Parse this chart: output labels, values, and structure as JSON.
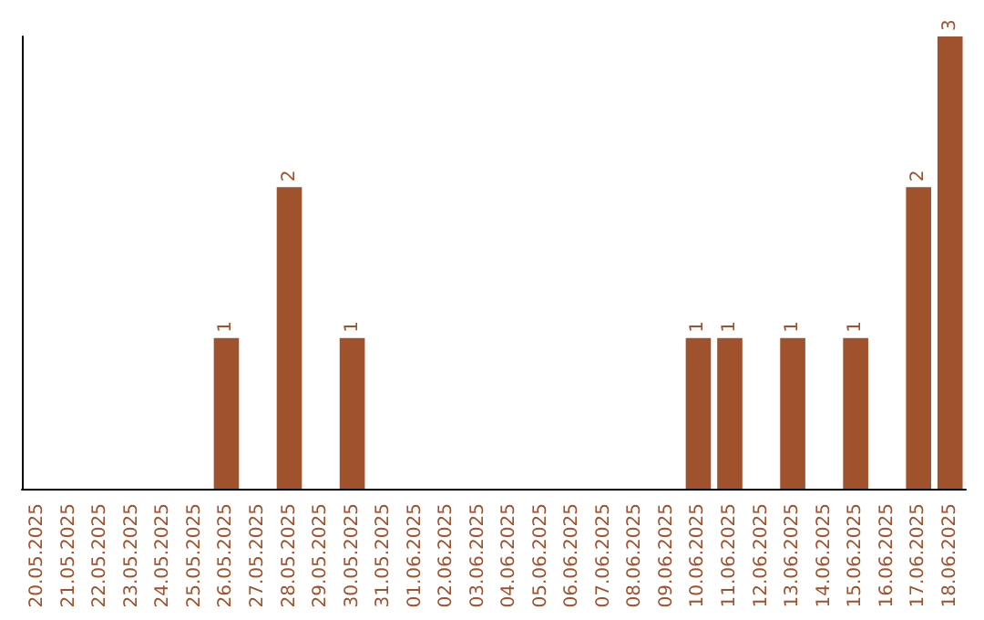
{
  "chart_data": {
    "type": "bar",
    "categories": [
      "20.05.2025",
      "21.05.2025",
      "22.05.2025",
      "23.05.2025",
      "24.05.2025",
      "25.05.2025",
      "26.05.2025",
      "27.05.2025",
      "28.05.2025",
      "29.05.2025",
      "30.05.2025",
      "31.05.2025",
      "01.06.2025",
      "02.06.2025",
      "03.06.2025",
      "04.06.2025",
      "05.06.2025",
      "06.06.2025",
      "07.06.2025",
      "08.06.2025",
      "09.06.2025",
      "10.06.2025",
      "11.06.2025",
      "12.06.2025",
      "13.06.2025",
      "14.06.2025",
      "15.06.2025",
      "16.06.2025",
      "17.06.2025",
      "18.06.2025"
    ],
    "values": [
      0,
      0,
      0,
      0,
      0,
      0,
      1,
      0,
      2,
      0,
      1,
      0,
      0,
      0,
      0,
      0,
      0,
      0,
      0,
      0,
      0,
      1,
      1,
      0,
      1,
      0,
      1,
      0,
      2,
      3
    ],
    "color": "#a0522d",
    "value_labels": [
      null,
      null,
      null,
      null,
      null,
      null,
      "1",
      null,
      "2",
      null,
      "1",
      null,
      null,
      null,
      null,
      null,
      null,
      null,
      null,
      null,
      null,
      "1",
      "1",
      null,
      "1",
      null,
      "1",
      null,
      "2",
      "3"
    ],
    "tick_labels": "x",
    "grid": false
  }
}
